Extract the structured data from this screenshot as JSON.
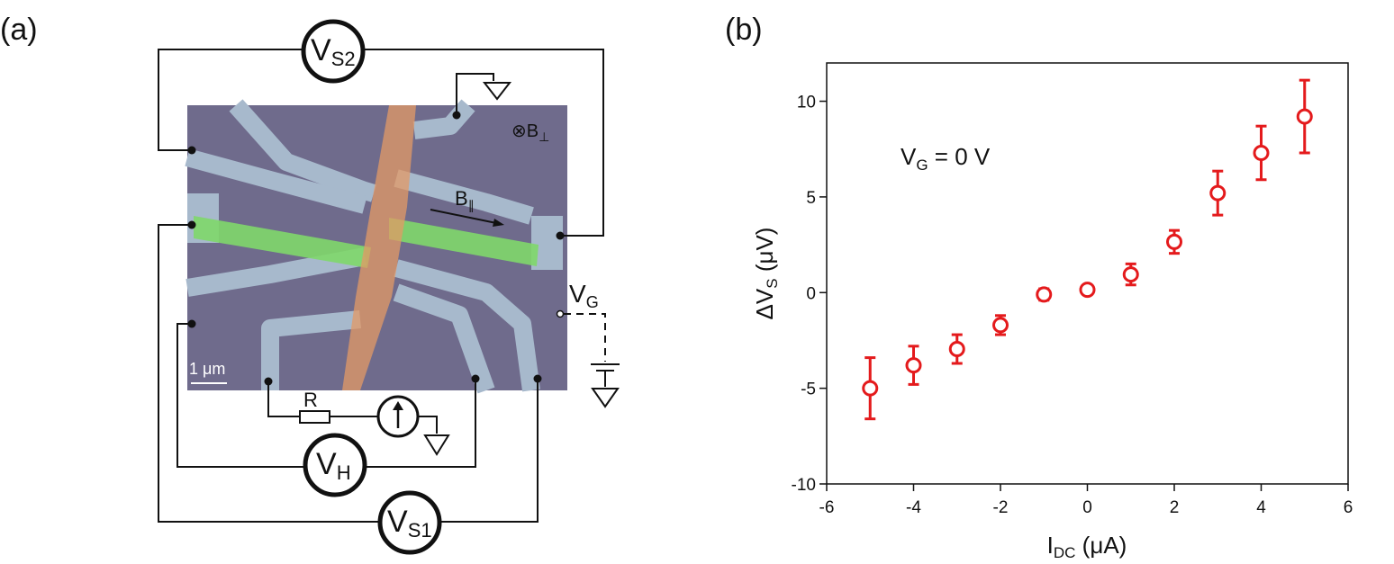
{
  "panels": {
    "a": "(a)",
    "b": "(b)"
  },
  "diagram": {
    "meters": [
      {
        "symbol": "V",
        "sub": "S2"
      },
      {
        "symbol": "V",
        "sub": "H"
      },
      {
        "symbol": "V",
        "sub": "S1"
      }
    ],
    "resistor": "R",
    "gate": {
      "symbol": "V",
      "sub": "G"
    },
    "b_perp": {
      "symbol": "⊗B",
      "sub": "⊥"
    },
    "b_par": {
      "symbol": "B",
      "sub": "∥"
    },
    "scale_bar": "1 μm"
  },
  "chart_data": {
    "type": "scatter",
    "x": [
      -5,
      -4,
      -3,
      -2,
      -1,
      0,
      1,
      2,
      3,
      4,
      5
    ],
    "values": [
      -5.0,
      -3.8,
      -2.95,
      -1.7,
      -0.1,
      0.15,
      0.95,
      2.65,
      5.2,
      7.3,
      9.2
    ],
    "errors": [
      1.6,
      1.0,
      0.75,
      0.5,
      0.3,
      0.1,
      0.55,
      0.6,
      1.15,
      1.4,
      1.9
    ],
    "color": "#e41a1c",
    "xlim": [
      -6,
      6
    ],
    "ylim": [
      -10,
      12
    ],
    "xticks": [
      -6,
      -4,
      -2,
      0,
      2,
      4,
      6
    ],
    "yticks": [
      -10,
      -5,
      0,
      5,
      10
    ],
    "x_label": {
      "main": "I",
      "sub": "DC",
      "rest": " (μA)"
    },
    "y_label": {
      "main": "ΔV",
      "sub": "S",
      "rest": " (μV)"
    },
    "annotation": {
      "main": "V",
      "sub": "G",
      "rest": " = 0 V"
    }
  }
}
